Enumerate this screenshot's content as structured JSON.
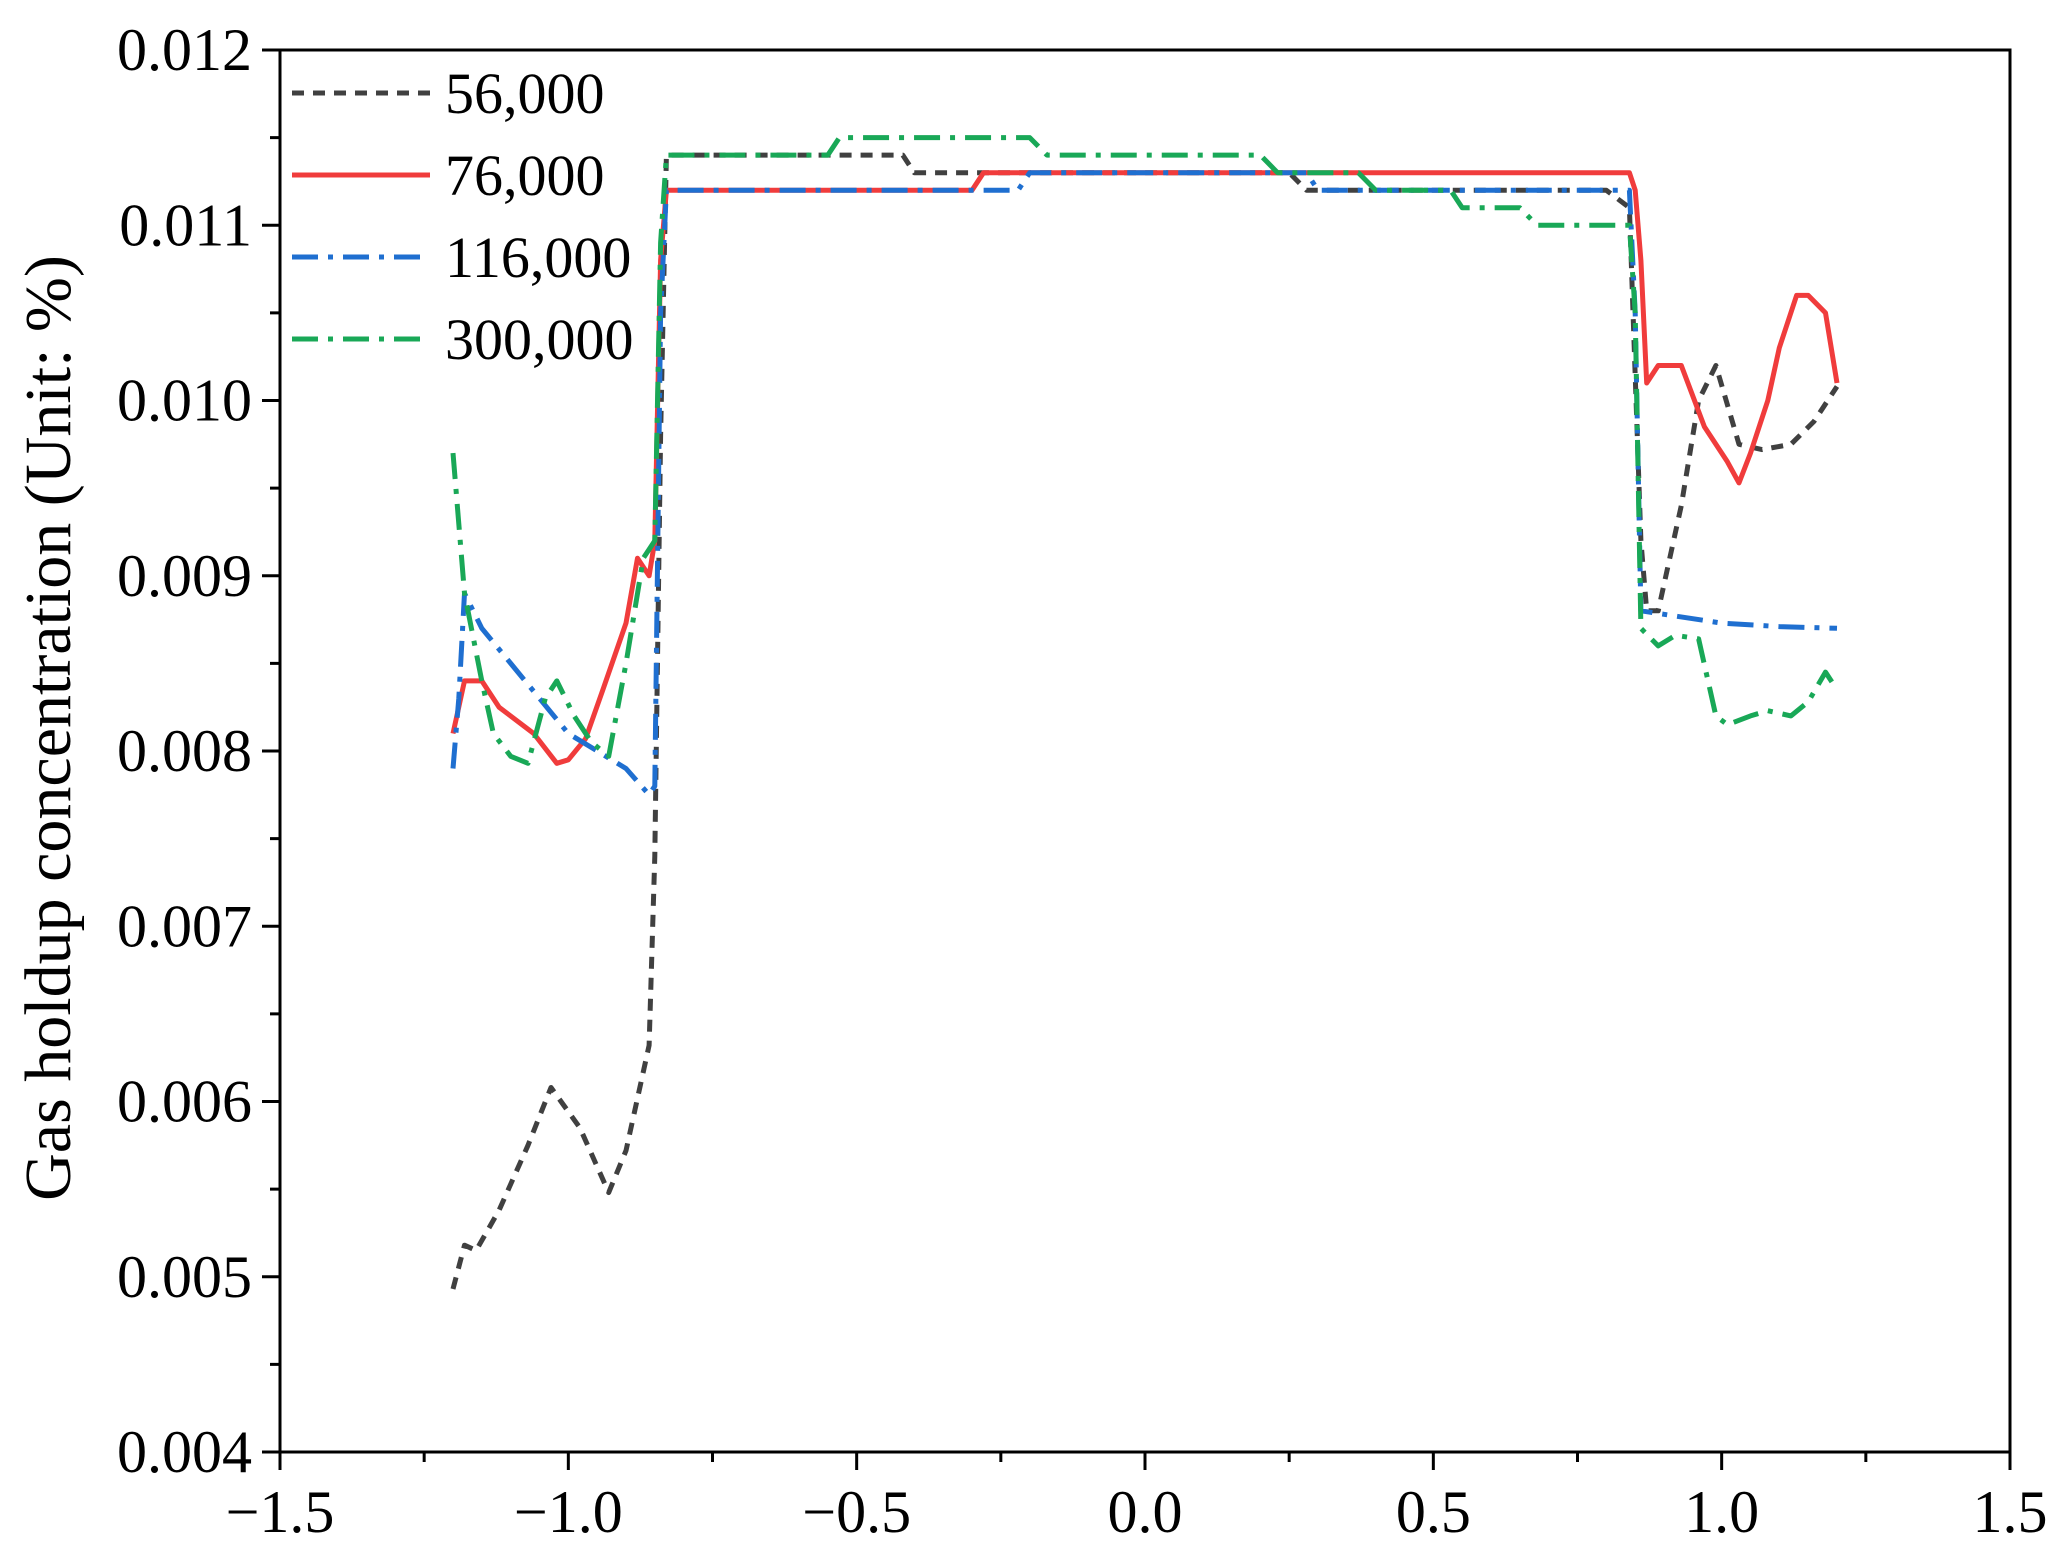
{
  "chart_data": {
    "type": "line",
    "title": "",
    "xlabel": "",
    "ylabel": "Gas holdup concentration (Unit: %)",
    "xlim": [
      -1.5,
      1.5
    ],
    "ylim": [
      0.004,
      0.012
    ],
    "x_ticks": [
      -1.5,
      -1.0,
      -0.5,
      0.0,
      0.5,
      1.0,
      1.5
    ],
    "x_tick_labels": [
      "−1.5",
      "−1.0",
      "−0.5",
      "0.0",
      "0.5",
      "1.0",
      "1.5"
    ],
    "y_ticks": [
      0.004,
      0.005,
      0.006,
      0.007,
      0.008,
      0.009,
      0.01,
      0.011,
      0.012
    ],
    "y_tick_labels": [
      "0.004",
      "0.005",
      "0.006",
      "0.007",
      "0.008",
      "0.009",
      "0.010",
      "0.011",
      "0.012"
    ],
    "grid": false,
    "legend_position": "top-left",
    "series": [
      {
        "name": "56,000",
        "color": "#404040",
        "dash": "short-dash",
        "points": [
          [
            -1.2,
            0.00493
          ],
          [
            -1.18,
            0.00518
          ],
          [
            -1.16,
            0.00515
          ],
          [
            -1.12,
            0.00538
          ],
          [
            -1.07,
            0.00575
          ],
          [
            -1.03,
            0.00608
          ],
          [
            -0.98,
            0.00585
          ],
          [
            -0.93,
            0.00548
          ],
          [
            -0.9,
            0.00572
          ],
          [
            -0.86,
            0.00632
          ],
          [
            -0.85,
            0.0074
          ],
          [
            -0.84,
            0.0098
          ],
          [
            -0.83,
            0.0114
          ],
          [
            -0.5,
            0.0114
          ],
          [
            -0.42,
            0.0114
          ],
          [
            -0.4,
            0.0113
          ],
          [
            -0.1,
            0.0113
          ],
          [
            0.25,
            0.0113
          ],
          [
            0.28,
            0.0112
          ],
          [
            0.8,
            0.0112
          ],
          [
            0.84,
            0.0111
          ],
          [
            0.86,
            0.0092
          ],
          [
            0.87,
            0.0088
          ],
          [
            0.89,
            0.0088
          ],
          [
            0.93,
            0.0094
          ],
          [
            0.96,
            0.01
          ],
          [
            0.99,
            0.0102
          ],
          [
            1.03,
            0.00975
          ],
          [
            1.07,
            0.00972
          ],
          [
            1.12,
            0.00975
          ],
          [
            1.16,
            0.00988
          ],
          [
            1.2,
            0.01008
          ]
        ]
      },
      {
        "name": "76,000",
        "color": "#f03c3c",
        "dash": "solid",
        "points": [
          [
            -1.2,
            0.0081
          ],
          [
            -1.18,
            0.0084
          ],
          [
            -1.15,
            0.0084
          ],
          [
            -1.12,
            0.00825
          ],
          [
            -1.06,
            0.0081
          ],
          [
            -1.02,
            0.00793
          ],
          [
            -1.0,
            0.00795
          ],
          [
            -0.97,
            0.00807
          ],
          [
            -0.94,
            0.00835
          ],
          [
            -0.9,
            0.00873
          ],
          [
            -0.88,
            0.0091
          ],
          [
            -0.86,
            0.009
          ],
          [
            -0.85,
            0.0092
          ],
          [
            -0.84,
            0.0108
          ],
          [
            -0.83,
            0.0112
          ],
          [
            -0.3,
            0.0112
          ],
          [
            -0.28,
            0.0113
          ],
          [
            0.5,
            0.0113
          ],
          [
            0.84,
            0.0113
          ],
          [
            0.85,
            0.0112
          ],
          [
            0.86,
            0.0108
          ],
          [
            0.87,
            0.0101
          ],
          [
            0.89,
            0.0102
          ],
          [
            0.93,
            0.0102
          ],
          [
            0.97,
            0.00985
          ],
          [
            1.01,
            0.00965
          ],
          [
            1.03,
            0.00953
          ],
          [
            1.05,
            0.0097
          ],
          [
            1.08,
            0.01
          ],
          [
            1.1,
            0.0103
          ],
          [
            1.13,
            0.0106
          ],
          [
            1.15,
            0.0106
          ],
          [
            1.18,
            0.0105
          ],
          [
            1.2,
            0.0101
          ]
        ]
      },
      {
        "name": "116,000",
        "color": "#1f6fd0",
        "dash": "dash-dot",
        "points": [
          [
            -1.2,
            0.0079
          ],
          [
            -1.19,
            0.0083
          ],
          [
            -1.18,
            0.0089
          ],
          [
            -1.15,
            0.0087
          ],
          [
            -1.1,
            0.0085
          ],
          [
            -1.05,
            0.0083
          ],
          [
            -1.0,
            0.0081
          ],
          [
            -0.95,
            0.008
          ],
          [
            -0.9,
            0.0079
          ],
          [
            -0.86,
            0.00775
          ],
          [
            -0.85,
            0.0078
          ],
          [
            -0.84,
            0.0105
          ],
          [
            -0.83,
            0.0112
          ],
          [
            -0.5,
            0.0112
          ],
          [
            -0.22,
            0.0112
          ],
          [
            -0.2,
            0.0113
          ],
          [
            0.28,
            0.0113
          ],
          [
            0.3,
            0.0112
          ],
          [
            0.84,
            0.0112
          ],
          [
            0.85,
            0.0105
          ],
          [
            0.86,
            0.0088
          ],
          [
            0.9,
            0.00878
          ],
          [
            1.0,
            0.00873
          ],
          [
            1.1,
            0.00871
          ],
          [
            1.2,
            0.0087
          ]
        ]
      },
      {
        "name": "300,000",
        "color": "#19a857",
        "dash": "dash-dot",
        "points": [
          [
            -1.2,
            0.0097
          ],
          [
            -1.18,
            0.0089
          ],
          [
            -1.15,
            0.0084
          ],
          [
            -1.13,
            0.0081
          ],
          [
            -1.1,
            0.00797
          ],
          [
            -1.07,
            0.00793
          ],
          [
            -1.04,
            0.0083
          ],
          [
            -1.02,
            0.0084
          ],
          [
            -0.99,
            0.0082
          ],
          [
            -0.96,
            0.00805
          ],
          [
            -0.93,
            0.00797
          ],
          [
            -0.9,
            0.0085
          ],
          [
            -0.87,
            0.0091
          ],
          [
            -0.85,
            0.0092
          ],
          [
            -0.84,
            0.0109
          ],
          [
            -0.83,
            0.0114
          ],
          [
            -0.55,
            0.0114
          ],
          [
            -0.53,
            0.0115
          ],
          [
            -0.2,
            0.0115
          ],
          [
            -0.17,
            0.0114
          ],
          [
            0.2,
            0.0114
          ],
          [
            0.23,
            0.0113
          ],
          [
            0.37,
            0.0113
          ],
          [
            0.4,
            0.0112
          ],
          [
            0.53,
            0.0112
          ],
          [
            0.55,
            0.0111
          ],
          [
            0.65,
            0.0111
          ],
          [
            0.68,
            0.011
          ],
          [
            0.84,
            0.011
          ],
          [
            0.85,
            0.0105
          ],
          [
            0.86,
            0.0087
          ],
          [
            0.89,
            0.0086
          ],
          [
            0.92,
            0.00866
          ],
          [
            0.96,
            0.00864
          ],
          [
            0.99,
            0.0082
          ],
          [
            1.01,
            0.00815
          ],
          [
            1.05,
            0.0082
          ],
          [
            1.08,
            0.00823
          ],
          [
            1.12,
            0.0082
          ],
          [
            1.15,
            0.00828
          ],
          [
            1.18,
            0.00845
          ],
          [
            1.2,
            0.00835
          ]
        ]
      }
    ]
  }
}
